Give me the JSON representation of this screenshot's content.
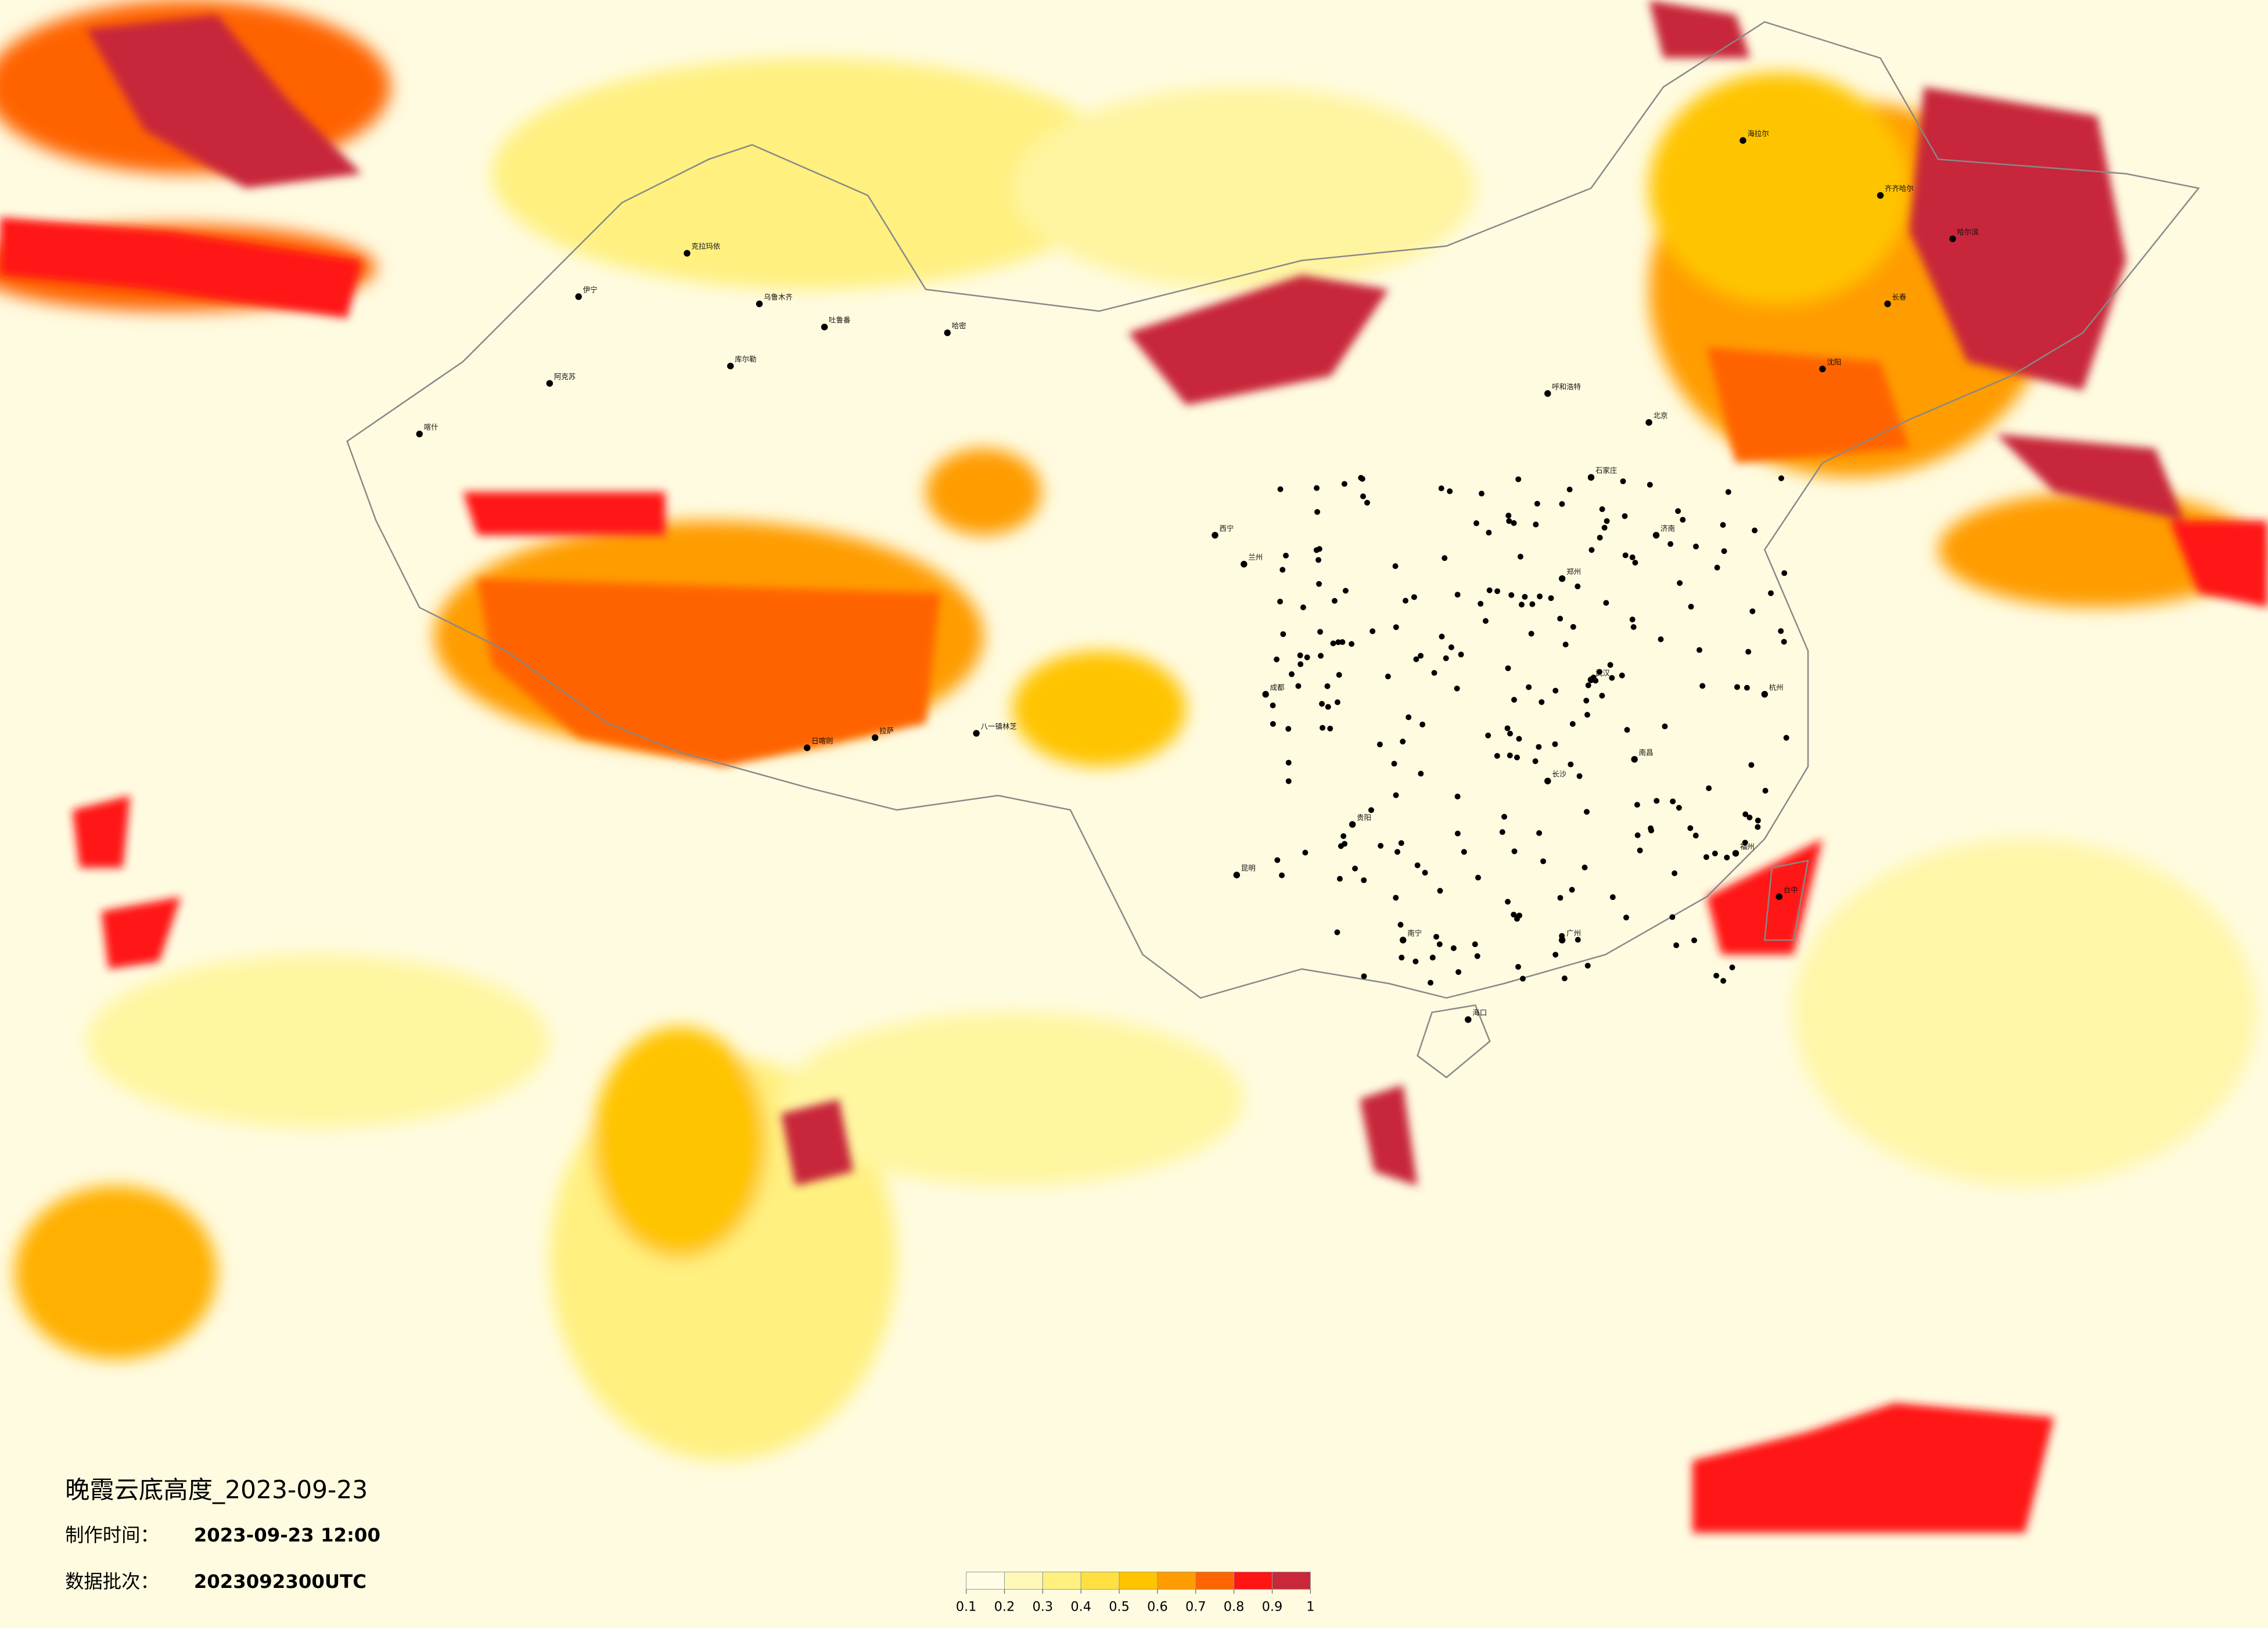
{
  "title": "晚霞云底高度_2023-09-23",
  "info": {
    "made_label": "制作时间：",
    "made_value": "2023-09-23 12:00",
    "batch_label": "数据批次：",
    "batch_value": "2023092300UTC"
  },
  "legend": {
    "ticks": [
      0.1,
      0.2,
      0.3,
      0.4,
      0.5,
      0.6,
      0.7,
      0.8,
      0.9,
      1
    ],
    "colors": [
      "#fffde6",
      "#fff8b8",
      "#fff080",
      "#ffe040",
      "#ffc400",
      "#ff9c00",
      "#ff6400",
      "#ff1414",
      "#c8283a"
    ]
  },
  "cities": [
    {
      "name": "伊宁"
    },
    {
      "name": "克拉玛依"
    },
    {
      "name": "乌鲁木齐"
    },
    {
      "name": "吐鲁番"
    },
    {
      "name": "库尔勒"
    },
    {
      "name": "阿克苏"
    },
    {
      "name": "喀什"
    },
    {
      "name": "哈密"
    },
    {
      "name": "日喀则"
    },
    {
      "name": "拉萨"
    },
    {
      "name": "八一镇林芝"
    },
    {
      "name": "海拉尔"
    },
    {
      "name": "齐齐哈尔"
    },
    {
      "name": "哈尔滨"
    },
    {
      "name": "长春"
    },
    {
      "name": "沈阳"
    },
    {
      "name": "呼和浩特"
    },
    {
      "name": "北京"
    },
    {
      "name": "石家庄"
    },
    {
      "name": "济南"
    },
    {
      "name": "郑州"
    },
    {
      "name": "武汉"
    },
    {
      "name": "长沙"
    },
    {
      "name": "南昌"
    },
    {
      "name": "杭州"
    },
    {
      "name": "福州"
    },
    {
      "name": "成都"
    },
    {
      "name": "贵阳"
    },
    {
      "name": "昆明"
    },
    {
      "name": "南宁"
    },
    {
      "name": "广州"
    },
    {
      "name": "海口"
    },
    {
      "name": "台中"
    },
    {
      "name": "西宁"
    },
    {
      "name": "兰州"
    }
  ]
}
